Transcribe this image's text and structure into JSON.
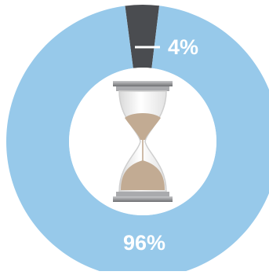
{
  "chart_data": {
    "type": "pie",
    "categories": [
      "",
      ""
    ],
    "values": [
      4,
      96
    ],
    "data_labels": [
      "4%",
      "96%"
    ],
    "colors": [
      "#4a4c50",
      "#97c9ea"
    ],
    "title": "",
    "legend": "none"
  },
  "center_icon": "hourglass-icon",
  "colors": {
    "label_text": "#ffffff",
    "hole": "#ffffff",
    "sand": "#c2ab93",
    "frame": "#8e8f92"
  }
}
